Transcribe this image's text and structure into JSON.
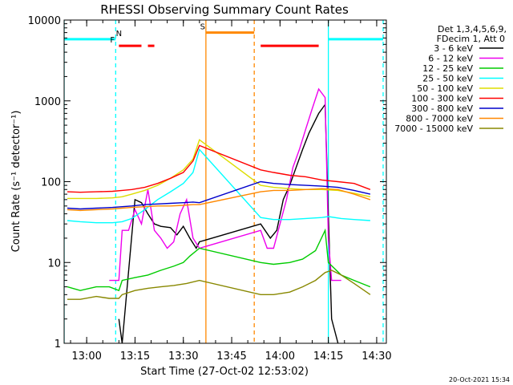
{
  "chart_data": {
    "type": "line",
    "title": "RHESSI Observing Summary Count Rates",
    "xlabel": "Start Time (27-Oct-02 12:53:02)",
    "ylabel": "Count Rate (s⁻¹ detector⁻¹)",
    "yscale": "log",
    "ylim": [
      1,
      10000
    ],
    "xlim_minutes": [
      0,
      100
    ],
    "x_tick_labels": [
      "13:00",
      "13:15",
      "13:30",
      "13:45",
      "14:00",
      "14:15",
      "14:30"
    ],
    "x_tick_minutes": [
      7,
      22,
      37,
      52,
      67,
      82,
      97
    ],
    "y_tick_labels": [
      "1",
      "10",
      "100",
      "1000",
      "10000"
    ],
    "y_tick_values": [
      1,
      10,
      100,
      1000,
      10000
    ],
    "legend": {
      "header1": "Det 1,3,4,5,6,9,",
      "header2": "FDecim 1, Att 0",
      "placement": "right"
    },
    "series": [
      {
        "name": "3 - 6 keV",
        "color": "#000000",
        "points": [
          [
            17,
            2
          ],
          [
            18,
            1
          ],
          [
            22,
            60
          ],
          [
            24,
            55
          ],
          [
            26,
            40
          ],
          [
            28,
            30
          ],
          [
            30,
            28
          ],
          [
            33,
            27
          ],
          [
            35,
            22
          ],
          [
            37,
            28
          ],
          [
            39,
            20
          ],
          [
            41,
            15
          ],
          [
            42,
            18
          ],
          [
            61,
            30
          ],
          [
            64,
            20
          ],
          [
            66,
            25
          ],
          [
            68,
            60
          ],
          [
            70,
            90
          ],
          [
            72,
            150
          ],
          [
            74,
            250
          ],
          [
            76,
            400
          ],
          [
            79,
            700
          ],
          [
            81,
            900
          ],
          [
            82,
            40
          ],
          [
            83,
            2
          ],
          [
            85,
            1
          ]
        ]
      },
      {
        "name": "6 - 12 keV",
        "color": "#ee00ee",
        "points": [
          [
            14,
            6
          ],
          [
            17,
            6
          ],
          [
            18,
            25
          ],
          [
            20,
            25
          ],
          [
            22,
            45
          ],
          [
            24,
            30
          ],
          [
            26,
            80
          ],
          [
            28,
            25
          ],
          [
            30,
            20
          ],
          [
            32,
            15
          ],
          [
            34,
            18
          ],
          [
            36,
            40
          ],
          [
            38,
            60
          ],
          [
            40,
            20
          ],
          [
            42,
            15
          ],
          [
            61,
            25
          ],
          [
            63,
            15
          ],
          [
            65,
            15
          ],
          [
            67,
            30
          ],
          [
            69,
            60
          ],
          [
            71,
            150
          ],
          [
            73,
            250
          ],
          [
            75,
            450
          ],
          [
            77,
            800
          ],
          [
            79,
            1400
          ],
          [
            81,
            1100
          ],
          [
            82,
            20
          ],
          [
            83,
            6
          ],
          [
            86,
            6
          ]
        ]
      },
      {
        "name": "12 - 25 keV",
        "color": "#00cc00",
        "points": [
          [
            1,
            5
          ],
          [
            5,
            4.5
          ],
          [
            10,
            5
          ],
          [
            14,
            5
          ],
          [
            17,
            4.5
          ],
          [
            18,
            6
          ],
          [
            22,
            6.5
          ],
          [
            26,
            7
          ],
          [
            30,
            8
          ],
          [
            34,
            9
          ],
          [
            37,
            10
          ],
          [
            39,
            12
          ],
          [
            42,
            15
          ],
          [
            61,
            10
          ],
          [
            65,
            9.5
          ],
          [
            70,
            10
          ],
          [
            74,
            11
          ],
          [
            78,
            14
          ],
          [
            81,
            25
          ],
          [
            82,
            10
          ],
          [
            86,
            7
          ],
          [
            90,
            6
          ],
          [
            95,
            5
          ]
        ]
      },
      {
        "name": "25 - 50 keV",
        "color": "#00ffff",
        "points": [
          [
            1,
            33
          ],
          [
            5,
            32
          ],
          [
            10,
            31
          ],
          [
            15,
            31
          ],
          [
            18,
            32
          ],
          [
            21,
            35
          ],
          [
            25,
            45
          ],
          [
            29,
            60
          ],
          [
            33,
            75
          ],
          [
            37,
            95
          ],
          [
            40,
            130
          ],
          [
            42,
            250
          ],
          [
            61,
            36
          ],
          [
            65,
            34
          ],
          [
            70,
            34
          ],
          [
            75,
            35
          ],
          [
            80,
            36
          ],
          [
            82,
            37
          ],
          [
            86,
            35
          ],
          [
            90,
            34
          ],
          [
            95,
            33
          ]
        ]
      },
      {
        "name": "50 - 100 keV",
        "color": "#dddd00",
        "points": [
          [
            1,
            62
          ],
          [
            5,
            62
          ],
          [
            10,
            62
          ],
          [
            15,
            63
          ],
          [
            18,
            65
          ],
          [
            21,
            70
          ],
          [
            25,
            78
          ],
          [
            29,
            90
          ],
          [
            33,
            110
          ],
          [
            37,
            140
          ],
          [
            40,
            190
          ],
          [
            42,
            330
          ],
          [
            61,
            90
          ],
          [
            65,
            85
          ],
          [
            70,
            82
          ],
          [
            75,
            80
          ],
          [
            80,
            80
          ],
          [
            85,
            78
          ],
          [
            90,
            72
          ],
          [
            95,
            65
          ]
        ]
      },
      {
        "name": "100 - 300 keV",
        "color": "#ff0000",
        "points": [
          [
            1,
            75
          ],
          [
            5,
            74
          ],
          [
            10,
            75
          ],
          [
            15,
            76
          ],
          [
            18,
            78
          ],
          [
            21,
            80
          ],
          [
            25,
            85
          ],
          [
            29,
            95
          ],
          [
            33,
            110
          ],
          [
            37,
            130
          ],
          [
            40,
            180
          ],
          [
            42,
            280
          ],
          [
            61,
            140
          ],
          [
            65,
            130
          ],
          [
            70,
            120
          ],
          [
            75,
            115
          ],
          [
            80,
            105
          ],
          [
            85,
            100
          ],
          [
            90,
            95
          ],
          [
            95,
            80
          ]
        ]
      },
      {
        "name": "300 - 800 keV",
        "color": "#0000cc",
        "points": [
          [
            1,
            47
          ],
          [
            5,
            46
          ],
          [
            10,
            47
          ],
          [
            15,
            48
          ],
          [
            18,
            49
          ],
          [
            21,
            50
          ],
          [
            25,
            52
          ],
          [
            29,
            53
          ],
          [
            33,
            54
          ],
          [
            37,
            55
          ],
          [
            40,
            56
          ],
          [
            42,
            55
          ],
          [
            61,
            100
          ],
          [
            65,
            95
          ],
          [
            70,
            92
          ],
          [
            75,
            90
          ],
          [
            80,
            88
          ],
          [
            85,
            85
          ],
          [
            90,
            78
          ],
          [
            95,
            70
          ]
        ]
      },
      {
        "name": "800 - 7000 keV",
        "color": "#ff8800",
        "points": [
          [
            1,
            45
          ],
          [
            5,
            44
          ],
          [
            10,
            45
          ],
          [
            15,
            46
          ],
          [
            18,
            47
          ],
          [
            21,
            48
          ],
          [
            25,
            49
          ],
          [
            29,
            50
          ],
          [
            33,
            50
          ],
          [
            37,
            51
          ],
          [
            40,
            52
          ],
          [
            42,
            52
          ],
          [
            61,
            75
          ],
          [
            65,
            78
          ],
          [
            70,
            78
          ],
          [
            75,
            80
          ],
          [
            80,
            82
          ],
          [
            85,
            80
          ],
          [
            90,
            70
          ],
          [
            95,
            60
          ]
        ]
      },
      {
        "name": "7000 - 15000 keV",
        "color": "#888800",
        "points": [
          [
            1,
            3.5
          ],
          [
            5,
            3.5
          ],
          [
            10,
            3.8
          ],
          [
            14,
            3.6
          ],
          [
            17,
            3.6
          ],
          [
            18,
            4
          ],
          [
            22,
            4.5
          ],
          [
            26,
            4.8
          ],
          [
            30,
            5
          ],
          [
            34,
            5.2
          ],
          [
            38,
            5.5
          ],
          [
            42,
            6
          ],
          [
            61,
            4
          ],
          [
            65,
            4
          ],
          [
            70,
            4.3
          ],
          [
            74,
            5
          ],
          [
            78,
            6
          ],
          [
            81,
            7.5
          ],
          [
            83,
            8
          ],
          [
            86,
            7
          ],
          [
            90,
            5.5
          ],
          [
            95,
            4
          ]
        ]
      }
    ],
    "vertical_markers": [
      {
        "minute": 0,
        "color": "#00ffff",
        "style": "solid"
      },
      {
        "minute": 16,
        "color": "#00ffff",
        "style": "dashed"
      },
      {
        "minute": 44,
        "color": "#ff8800",
        "style": "solid"
      },
      {
        "minute": 59,
        "color": "#ff8800",
        "style": "dashed"
      },
      {
        "minute": 82,
        "color": "#00ffff",
        "style": "solid"
      },
      {
        "minute": 99,
        "color": "#00ffff",
        "style": "dashed"
      }
    ],
    "flag_bars": [
      {
        "label": "N",
        "color": "#00ffff",
        "y": 5800,
        "segments": [
          [
            0,
            16
          ],
          [
            82,
            99
          ]
        ],
        "label_at": 17
      },
      {
        "label": "F",
        "color": "#ff0000",
        "y": 4800,
        "segments": [
          [
            17,
            24
          ],
          [
            26,
            28
          ],
          [
            61,
            79
          ]
        ],
        "label_at": 15
      },
      {
        "label": "S",
        "color": "#ff8800",
        "y": 7000,
        "segments": [
          [
            44,
            59
          ]
        ],
        "label_at": 43
      }
    ]
  },
  "footer": {
    "timestamp": "20-Oct-2021 15:34"
  }
}
